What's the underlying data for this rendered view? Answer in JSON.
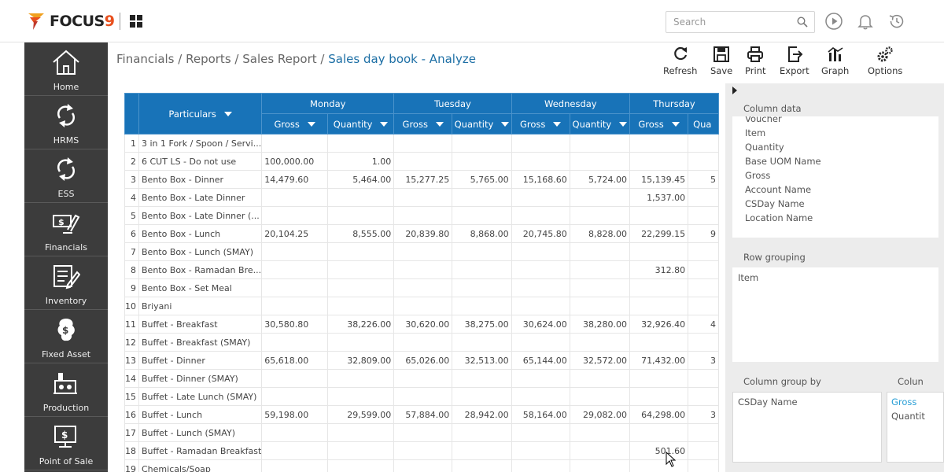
{
  "app": {
    "logo": "FOCUS",
    "logo_nine": "9"
  },
  "search": {
    "placeholder": "Search"
  },
  "sidebar": {
    "items": [
      {
        "label": "Home"
      },
      {
        "label": "HRMS"
      },
      {
        "label": "ESS"
      },
      {
        "label": "Financials"
      },
      {
        "label": "Inventory"
      },
      {
        "label": "Fixed Asset"
      },
      {
        "label": "Production"
      },
      {
        "label": "Point of Sale"
      }
    ]
  },
  "breadcrumb": {
    "items": [
      "Financials",
      "Reports",
      "Sales Report"
    ],
    "separator": " / ",
    "current": "Sales day book - Analyze"
  },
  "toolbar": {
    "refresh": "Refresh",
    "save": "Save",
    "print": "Print",
    "export": "Export",
    "graph": "Graph",
    "options": "Options"
  },
  "grid": {
    "particulars_header": "Particulars",
    "days": [
      "Monday",
      "Tuesday",
      "Wednesday",
      "Thursday"
    ],
    "sub_headers": [
      "Gross",
      "Quantity",
      "Gross",
      "Quantity",
      "Gross",
      "Quantity",
      "Gross",
      "Qua"
    ],
    "rows": [
      {
        "n": "1",
        "p": "3 in 1 Fork / Spoon / Servi...",
        "v": [
          "",
          "",
          "",
          "",
          "",
          "",
          "",
          ""
        ]
      },
      {
        "n": "2",
        "p": "6 CUT LS - Do not use",
        "v": [
          "100,000.00",
          "1.00",
          "",
          "",
          "",
          "",
          "",
          ""
        ]
      },
      {
        "n": "3",
        "p": "Bento Box - Dinner",
        "v": [
          "14,479.60",
          "5,464.00",
          "15,277.25",
          "5,765.00",
          "15,168.60",
          "5,724.00",
          "15,139.45",
          "5"
        ]
      },
      {
        "n": "4",
        "p": "Bento Box - Late Dinner",
        "v": [
          "",
          "",
          "",
          "",
          "",
          "",
          "1,537.00",
          ""
        ]
      },
      {
        "n": "5",
        "p": "Bento Box - Late Dinner (...",
        "v": [
          "",
          "",
          "",
          "",
          "",
          "",
          "",
          ""
        ]
      },
      {
        "n": "6",
        "p": "Bento Box - Lunch",
        "v": [
          "20,104.25",
          "8,555.00",
          "20,839.80",
          "8,868.00",
          "20,745.80",
          "8,828.00",
          "22,299.15",
          "9"
        ]
      },
      {
        "n": "7",
        "p": "Bento Box - Lunch (SMAY)",
        "v": [
          "",
          "",
          "",
          "",
          "",
          "",
          "",
          ""
        ]
      },
      {
        "n": "8",
        "p": "Bento Box - Ramadan Bre...",
        "v": [
          "",
          "",
          "",
          "",
          "",
          "",
          "312.80",
          ""
        ]
      },
      {
        "n": "9",
        "p": "Bento Box - Set Meal",
        "v": [
          "",
          "",
          "",
          "",
          "",
          "",
          "",
          ""
        ]
      },
      {
        "n": "10",
        "p": "Briyani",
        "v": [
          "",
          "",
          "",
          "",
          "",
          "",
          "",
          ""
        ]
      },
      {
        "n": "11",
        "p": "Buffet - Breakfast",
        "v": [
          "30,580.80",
          "38,226.00",
          "30,620.00",
          "38,275.00",
          "30,624.00",
          "38,280.00",
          "32,926.40",
          "4"
        ]
      },
      {
        "n": "12",
        "p": "Buffet - Breakfast (SMAY)",
        "v": [
          "",
          "",
          "",
          "",
          "",
          "",
          "",
          ""
        ]
      },
      {
        "n": "13",
        "p": "Buffet - Dinner",
        "v": [
          "65,618.00",
          "32,809.00",
          "65,026.00",
          "32,513.00",
          "65,144.00",
          "32,572.00",
          "71,432.00",
          "3"
        ]
      },
      {
        "n": "14",
        "p": "Buffet - Dinner (SMAY)",
        "v": [
          "",
          "",
          "",
          "",
          "",
          "",
          "",
          ""
        ]
      },
      {
        "n": "15",
        "p": "Buffet - Late Lunch (SMAY)",
        "v": [
          "",
          "",
          "",
          "",
          "",
          "",
          "",
          ""
        ]
      },
      {
        "n": "16",
        "p": "Buffet - Lunch",
        "v": [
          "59,198.00",
          "29,599.00",
          "57,884.00",
          "28,942.00",
          "58,164.00",
          "29,082.00",
          "64,298.00",
          "3"
        ]
      },
      {
        "n": "17",
        "p": "Buffet - Lunch (SMAY)",
        "v": [
          "",
          "",
          "",
          "",
          "",
          "",
          "",
          ""
        ]
      },
      {
        "n": "18",
        "p": "Buffet - Ramadan Breakfast",
        "v": [
          "",
          "",
          "",
          "",
          "",
          "",
          "501.60",
          ""
        ]
      },
      {
        "n": "19",
        "p": "Chemicals/Soap",
        "v": [
          "",
          "",
          "",
          "",
          "",
          "",
          "",
          ""
        ]
      }
    ]
  },
  "panel": {
    "column_data_title": "Column data",
    "column_data_items": [
      "Voucher",
      "Item",
      "Quantity",
      "Base UOM Name",
      "Gross",
      "Account Name",
      "CSDay Name",
      "Location Name"
    ],
    "row_grouping_title": "Row grouping",
    "row_grouping_items": [
      "Item"
    ],
    "column_group_by_title": "Column group by",
    "column_group_by_items": [
      "CSDay Name"
    ],
    "column_title_cut": "Colun",
    "column_items": [
      "Gross",
      "Quantit"
    ],
    "accent_color": "#1873b8",
    "active_item_color": "#2a9fd6"
  }
}
